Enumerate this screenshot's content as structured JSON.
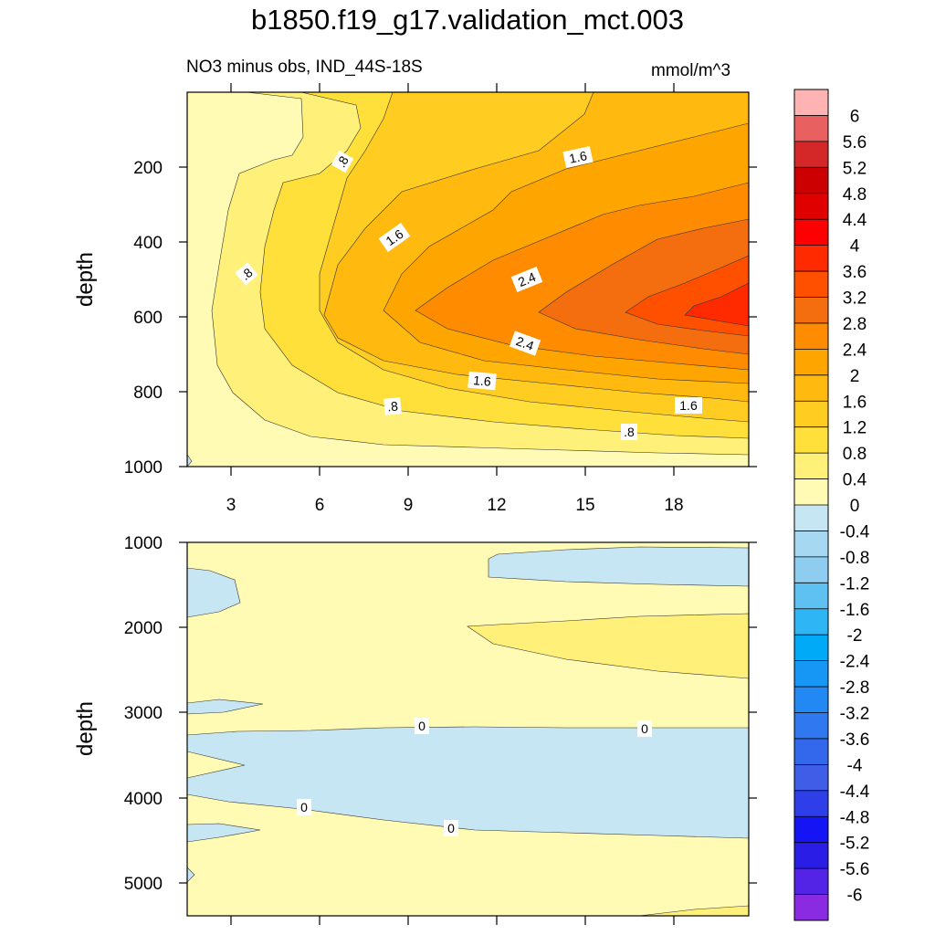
{
  "title": "b1850.f19_g17.validation_mct.003",
  "subtitle_left": "NO3 minus obs, IND_44S-18S",
  "units": "mmol/m^3",
  "chart_data": [
    {
      "type": "contour",
      "panel": "upper",
      "ylabel": "depth",
      "y_reversed": true,
      "ylim": [
        1000,
        0
      ],
      "y_ticks": [
        "200",
        "400",
        "600",
        "800",
        "1000"
      ],
      "xlim": [
        1.5,
        20.5
      ],
      "x_ticks": [
        "3",
        "6",
        "9",
        "12",
        "15",
        "18"
      ],
      "contour_labels": [
        ".8",
        "1.6",
        ".8",
        "1.6",
        "2.4",
        "2.4",
        "1.6",
        ".8",
        "1.6",
        ".8"
      ],
      "max_region": {
        "x": 20,
        "depth": 580,
        "range": "3.2-3.6"
      },
      "pattern": "positive bias increasing eastward, maximum near 600 m depth"
    },
    {
      "type": "contour",
      "panel": "lower",
      "ylabel": "depth",
      "y_reversed": true,
      "ylim": [
        5400,
        1000
      ],
      "y_ticks": [
        "1000",
        "2000",
        "3000",
        "4000",
        "5000"
      ],
      "xlim": [
        1.5,
        20.5
      ],
      "contour_labels": [
        "0",
        "0",
        "0",
        "0"
      ],
      "pattern": "near-zero bias; negative band 3200-4500 m"
    }
  ],
  "colorbar": {
    "labels": [
      "6",
      "5.6",
      "5.2",
      "4.8",
      "4.4",
      "4",
      "3.6",
      "3.2",
      "2.8",
      "2.4",
      "2",
      "1.6",
      "1.2",
      "0.8",
      "0.4",
      "0",
      "-0.4",
      "-0.8",
      "-1.2",
      "-1.6",
      "-2",
      "-2.4",
      "-2.8",
      "-3.2",
      "-3.6",
      "-4",
      "-4.4",
      "-4.8",
      "-5.2",
      "-5.6",
      "-6"
    ],
    "colors": [
      "#ffb3b3",
      "#e86060",
      "#d42828",
      "#cc0000",
      "#e00000",
      "#ff0000",
      "#ff2a00",
      "#ff5000",
      "#f46e10",
      "#ff8c00",
      "#ffa500",
      "#ffb90f",
      "#ffcc22",
      "#ffe03a",
      "#fff07a",
      "#fffab4",
      "#c6e6f3",
      "#a6d9f1",
      "#8ecdf0",
      "#5fc0f2",
      "#2eb5f5",
      "#00aaf7",
      "#1696f5",
      "#2288f4",
      "#2f78f0",
      "#3468ec",
      "#3f5de6",
      "#2e3ee8",
      "#1414f5",
      "#2a1ee6",
      "#5424e6",
      "#8a2be2"
    ]
  }
}
